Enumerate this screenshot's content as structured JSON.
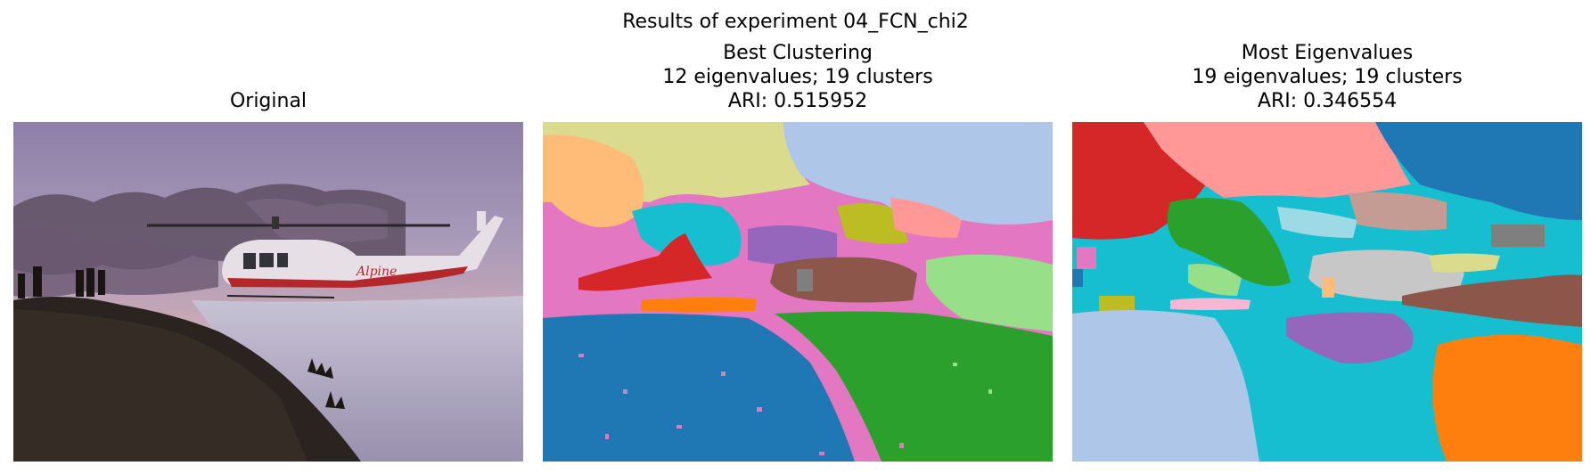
{
  "figure": {
    "suptitle": "Results of experiment 04_FCN_chi2"
  },
  "panels": [
    {
      "title_lines": [
        "Original"
      ],
      "image": "Photograph of a red and white helicopter with the lettering 'Alpine' landed on a snowy hilltop at dusk, silhouetted people on the left, purple sky with dark clouds"
    },
    {
      "title_lines": [
        "Best Clustering",
        "12 eigenvalues; 19 clusters",
        "ARI: 0.515952"
      ]
    },
    {
      "title_lines": [
        "Most Eigenvalues",
        "19 eigenvalues; 19 clusters",
        "ARI: 0.346554"
      ]
    }
  ],
  "helicopter_text": "Alpine",
  "colors": {
    "tab_blue": "#1f77b4",
    "tab_lightblue": "#aec7e8",
    "tab_orange": "#ff7f0e",
    "tab_lightorange": "#ffbb78",
    "tab_green": "#2ca02c",
    "tab_lightgreen": "#98df8a",
    "tab_red": "#d62728",
    "tab_pink": "#ff9896",
    "tab_purple": "#9467bd",
    "tab_brown": "#8c564b",
    "tab_magenta": "#e377c2",
    "tab_olive": "#bcbd22",
    "tab_khaki": "#dbdb8d",
    "tab_cyan": "#17becf",
    "tab_lightcyan": "#9edae5",
    "tab_gray": "#7f7f7f",
    "tab_lightgray": "#c7c7c7"
  }
}
